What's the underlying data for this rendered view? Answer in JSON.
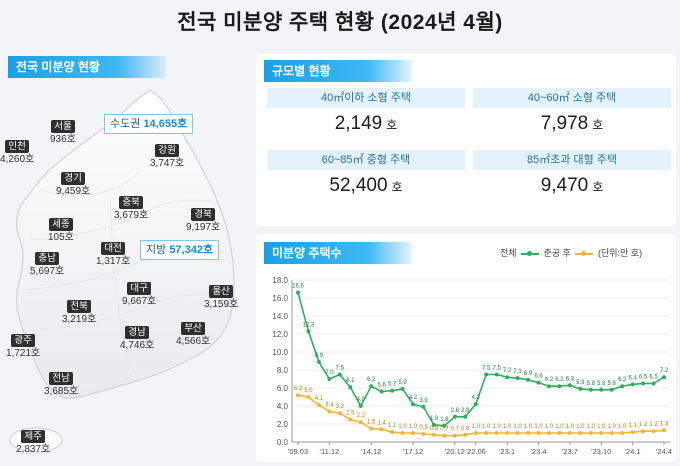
{
  "title": "전국 미분양 주택 현황  (2024년 4월)",
  "map": {
    "label": "전국 미분양 현황",
    "capital_callout": {
      "name": "수도권",
      "value": "14,655호"
    },
    "local_callout": {
      "name": "지방",
      "value": "57,342호"
    },
    "regions": [
      {
        "name": "서울",
        "value": "936호"
      },
      {
        "name": "인천",
        "value": "4,260호"
      },
      {
        "name": "강원",
        "value": "3,747호"
      },
      {
        "name": "경기",
        "value": "9,459호"
      },
      {
        "name": "충북",
        "value": "3,679호"
      },
      {
        "name": "경북",
        "value": "9,197호"
      },
      {
        "name": "세종",
        "value": "105호"
      },
      {
        "name": "충남",
        "value": "5,697호"
      },
      {
        "name": "대전",
        "value": "1,317호"
      },
      {
        "name": "대구",
        "value": "9,667호"
      },
      {
        "name": "울산",
        "value": "3,159호"
      },
      {
        "name": "전북",
        "value": "3,219호"
      },
      {
        "name": "경남",
        "value": "4,746호"
      },
      {
        "name": "부산",
        "value": "4,566호"
      },
      {
        "name": "광주",
        "value": "1,721호"
      },
      {
        "name": "전남",
        "value": "3,685호"
      },
      {
        "name": "제주",
        "value": "2,837호"
      }
    ]
  },
  "size": {
    "label": "규모별 현황",
    "cells": [
      {
        "head": "40㎡이하 소형 주택",
        "value": "2,149",
        "unit": "호"
      },
      {
        "head": "40~60㎡ 소형 주택",
        "value": "7,978",
        "unit": "호"
      },
      {
        "head": "60~85㎡ 중형 주택",
        "value": "52,400",
        "unit": "호"
      },
      {
        "head": "85㎡초과 대형 주택",
        "value": "9,470",
        "unit": "호"
      }
    ]
  },
  "trend": {
    "label": "미분양 주택수",
    "legend": {
      "total": "전체",
      "completed": "준공 후",
      "unit": "(단위:만 호)"
    },
    "colors": {
      "total": "#2fae5a",
      "completed": "#f2b731",
      "accent": "#1aa0e8"
    }
  },
  "chart_data": {
    "type": "line",
    "title": "",
    "xlabel": "",
    "ylabel": "",
    "ylim": [
      0,
      18
    ],
    "yticks": [
      "0.0",
      "2.0",
      "4.0",
      "6.0",
      "8.0",
      "10.0",
      "12.0",
      "14.0",
      "16.0",
      "18.0"
    ],
    "x_tick_labels": [
      "'09.03",
      "'11.12",
      "'14.12",
      "'17.12",
      "'20.12",
      "'22.06",
      "'23.1",
      "'23.4",
      "'23.7",
      "'23.10",
      "'24.1",
      "'24.4"
    ],
    "x": [
      "'09.03",
      "'10.06",
      "'11.06",
      "'11.12",
      "'12.06",
      "'13.06",
      "'14.06",
      "'14.12",
      "'15.06",
      "'16.06",
      "'17.06",
      "'17.12",
      "'18.06",
      "'19.06",
      "'20.06",
      "'20.12",
      "'21.06",
      "'22.06",
      "'22.09",
      "'22.12",
      "'23.1",
      "'23.2",
      "'23.3",
      "'23.4",
      "'23.5",
      "'23.6",
      "'23.7",
      "'23.8",
      "'23.9",
      "'23.10",
      "'23.11",
      "'23.12",
      "'24.1",
      "'24.2",
      "'24.3",
      "'24.4"
    ],
    "series": [
      {
        "name": "전체",
        "values": [
          16.6,
          12.3,
          8.9,
          7.0,
          7.5,
          6.1,
          4.0,
          6.2,
          5.6,
          5.7,
          5.9,
          4.2,
          3.9,
          1.9,
          1.8,
          2.8,
          2.8,
          4.2,
          7.5,
          7.5,
          7.2,
          7.1,
          6.9,
          6.6,
          6.2,
          6.2,
          6.3,
          5.9,
          5.8,
          5.8,
          5.8,
          6.2,
          6.4,
          6.5,
          6.5,
          7.2
        ],
        "labels": [
          "16.6",
          "12.3",
          "8.9",
          "7.0",
          "7.5",
          "6.1",
          "4.0",
          "6.2",
          "5.6",
          "5.7",
          "5.9",
          "4.2",
          "3.9",
          "1.9",
          "1.8",
          "2.8",
          "2.8",
          "4.2",
          "7.5",
          "7.5",
          "7.2",
          "7.1",
          "6.9",
          "6.6",
          "6.2",
          "6.2",
          "6.3",
          "5.9",
          "5.8",
          "5.8",
          "5.8",
          "6.2",
          "6.4",
          "6.5",
          "6.5",
          "7.2"
        ]
      },
      {
        "name": "준공 후",
        "values": [
          5.2,
          5.0,
          4.1,
          3.4,
          3.2,
          2.5,
          2.2,
          1.5,
          1.4,
          1.1,
          1.0,
          1.0,
          0.9,
          0.8,
          0.7,
          0.7,
          0.8,
          1.0,
          1.0,
          1.0,
          1.0,
          1.0,
          1.0,
          1.0,
          1.0,
          1.0,
          1.0,
          1.0,
          1.0,
          1.0,
          1.0,
          1.0,
          1.1,
          1.2,
          1.2,
          1.3
        ],
        "labels": [
          "5.2",
          "5.0",
          "4.1",
          "3.4",
          "3.2",
          "2.5",
          "2.2",
          "1.5",
          "1.4",
          "1.1",
          "1.0",
          "1.0",
          "0.9",
          "0.8",
          "0.7",
          "0.7",
          "0.8",
          "1.0",
          "1.0",
          "1.0",
          "1.0",
          "1.0",
          "1.0",
          "1.0",
          "1.0",
          "1.0",
          "1.0",
          "1.0",
          "1.0",
          "1.0",
          "1.0",
          "1.0",
          "1.1",
          "1.2",
          "1.2",
          "1.3"
        ]
      }
    ]
  }
}
